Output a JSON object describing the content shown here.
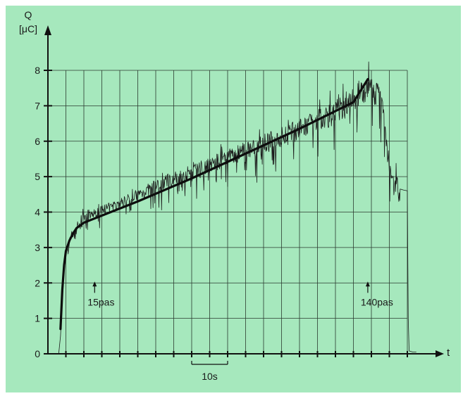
{
  "chart_data": {
    "type": "line",
    "title": "",
    "ylabel_line1": "Q",
    "ylabel_line2": "[μC]",
    "xlabel": "t",
    "ylim": [
      0,
      8
    ],
    "y_ticks": [
      "0",
      "1",
      "2",
      "3",
      "4",
      "5",
      "6",
      "7",
      "8"
    ],
    "x_unit": "s",
    "xlim": [
      0,
      200
    ],
    "x_grid_step": 10,
    "grid": true,
    "scale_bar": {
      "label": "10s",
      "from": 80,
      "to": 100
    },
    "annotations": [
      {
        "text": "15pas",
        "x": 26
      },
      {
        "text": "140pas",
        "x": 178
      }
    ],
    "series": [
      {
        "kind": "measured",
        "x": [
          6,
          7,
          8,
          9,
          10,
          11,
          12,
          14,
          16,
          18,
          20,
          25,
          30,
          40,
          50,
          60,
          70,
          80,
          90,
          100,
          110,
          120,
          130,
          140,
          150,
          160,
          165,
          170,
          175,
          180,
          182,
          184,
          186,
          188,
          190,
          192,
          194,
          196,
          198,
          200,
          200.5,
          201,
          203,
          205
        ],
        "y": [
          0,
          0.5,
          1.5,
          2.3,
          2.8,
          3.0,
          3.15,
          3.4,
          3.55,
          3.7,
          3.8,
          3.95,
          4.05,
          4.25,
          4.5,
          4.75,
          4.95,
          5.15,
          5.35,
          5.55,
          5.75,
          5.95,
          6.15,
          6.35,
          6.6,
          6.85,
          7.0,
          7.2,
          7.45,
          7.55,
          7.3,
          7.35,
          7.1,
          6.2,
          5.4,
          4.9,
          4.75,
          4.65,
          4.62,
          4.6,
          1.0,
          0.08,
          0.05,
          0.05
        ]
      },
      {
        "kind": "fit",
        "x": [
          7,
          8,
          9,
          10,
          11,
          12,
          14,
          16,
          20,
          30,
          50,
          80,
          110,
          140,
          170,
          178
        ],
        "y": [
          0.7,
          1.8,
          2.5,
          2.9,
          3.05,
          3.2,
          3.4,
          3.55,
          3.7,
          3.9,
          4.3,
          4.95,
          5.65,
          6.35,
          7.1,
          7.75
        ]
      }
    ]
  }
}
